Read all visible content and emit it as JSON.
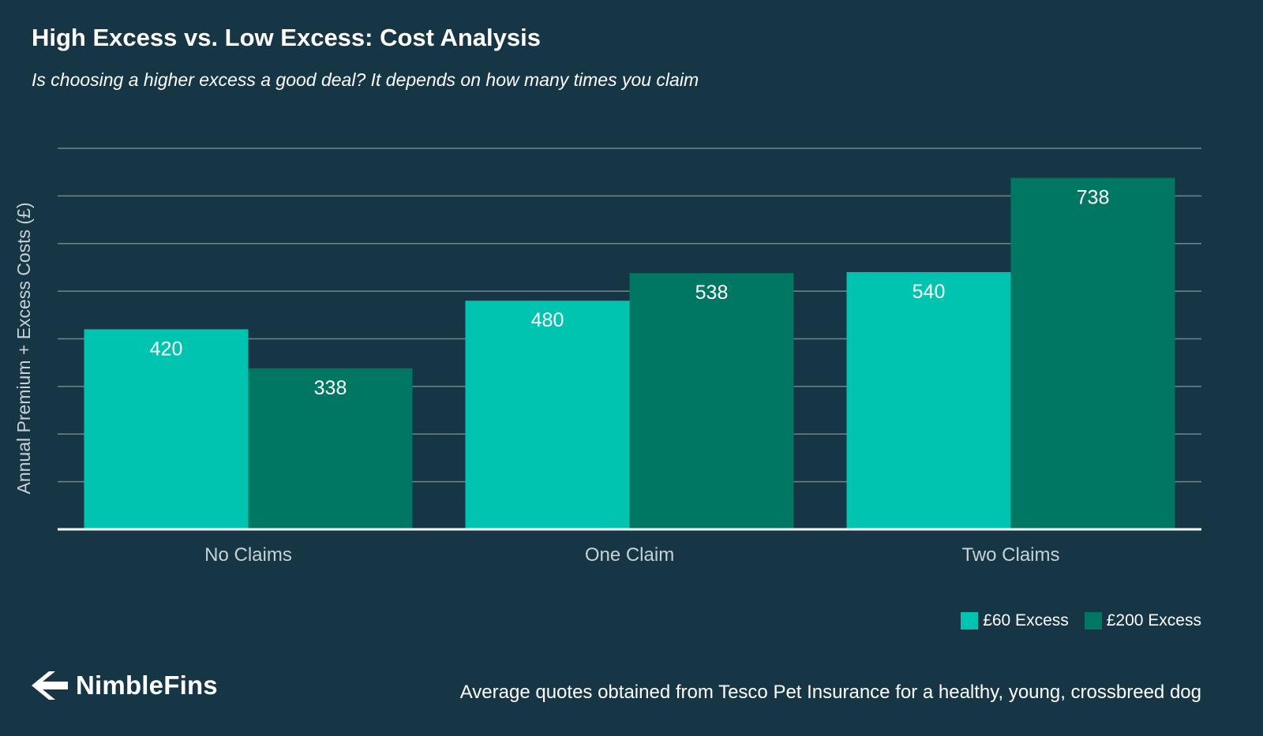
{
  "header": {
    "title": "High Excess vs. Low Excess: Cost Analysis",
    "subtitle": "Is choosing a higher excess a good deal? It depends on how many times you claim"
  },
  "chart_data": {
    "type": "bar",
    "title": "High Excess vs. Low Excess: Cost Analysis",
    "subtitle": "Is choosing a higher excess a good deal? It depends on how many times you claim",
    "xlabel": "",
    "ylabel": "Annual Premium + Excess Costs (£)",
    "categories": [
      "No Claims",
      "One Claim",
      "Two Claims"
    ],
    "series": [
      {
        "name": "£60 Excess",
        "values": [
          420,
          480,
          540
        ],
        "color": "#00c4b0"
      },
      {
        "name": "£200 Excess",
        "values": [
          338,
          538,
          738
        ],
        "color": "#007762"
      }
    ],
    "ylim": [
      0,
      800
    ],
    "grid": true,
    "data_labels": true,
    "legend_position": "bottom-right"
  },
  "legend": {
    "items": [
      {
        "label": "£60 Excess",
        "color": "#00c4b0"
      },
      {
        "label": "£200 Excess",
        "color": "#007762"
      }
    ]
  },
  "footer": {
    "brand": "NimbleFins",
    "brand_icon": "nimblefins-logo-icon",
    "note": "Average quotes obtained from Tesco Pet Insurance for a healthy, young, crossbreed dog"
  },
  "colors": {
    "background": "#163645",
    "grid": "#6f8690",
    "axis": "#ffffff",
    "text": "#ffffff",
    "muted_text": "#c7d2d6"
  }
}
